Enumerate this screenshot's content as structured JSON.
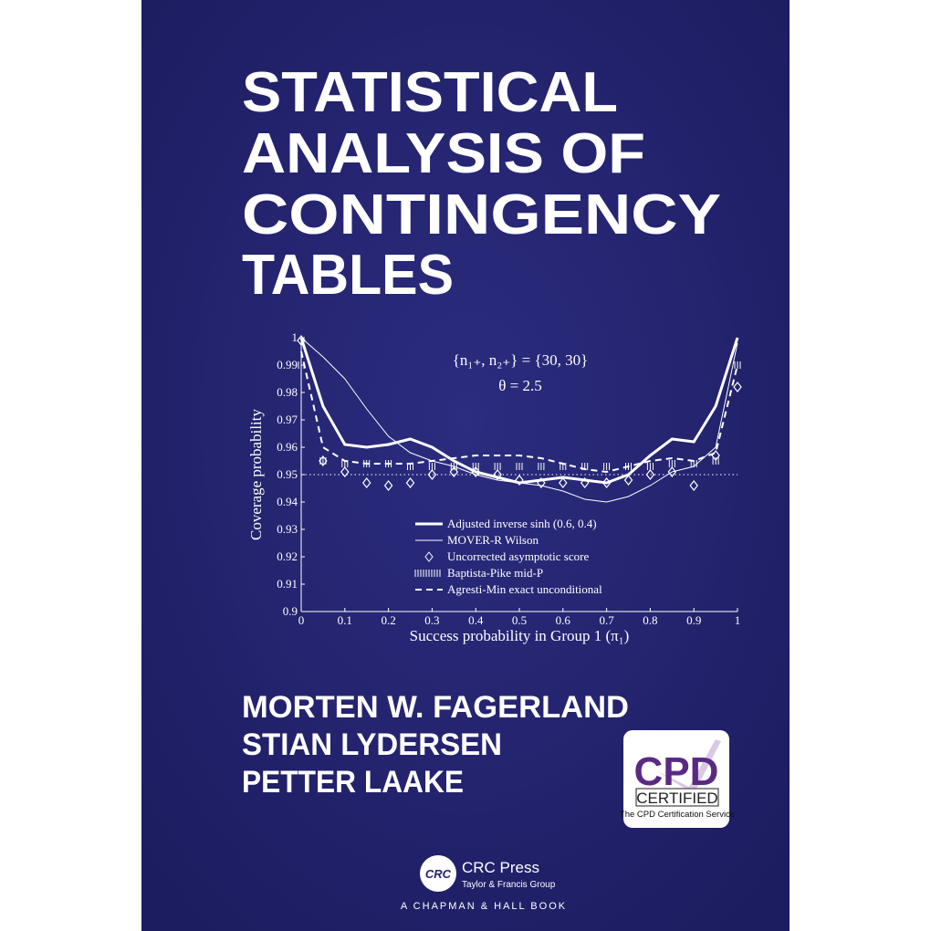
{
  "cover": {
    "title_lines": [
      "STATISTICAL",
      "ANALYSIS OF",
      "CONTINGENCY",
      "TABLES"
    ],
    "authors": [
      "MORTEN W. FAGERLAND",
      "STIAN LYDERSEN",
      "PETTER LAAKE"
    ],
    "badge": {
      "logo": "CPD",
      "status": "CERTIFIED",
      "service": "The CPD Certification Service"
    },
    "publisher": {
      "logo": "CRC",
      "name": "CRC Press",
      "group": "Taylor & Francis Group",
      "imprint": "A CHAPMAN & HALL BOOK"
    }
  },
  "chart_data": {
    "type": "line",
    "annotations": [
      "{n₁₊, n₂₊} = {30, 30}",
      "θ = 2.5"
    ],
    "x_label": "Success probability in Group 1 (π₁)",
    "y_label": "Coverage probability",
    "x": [
      0,
      0.05,
      0.1,
      0.15,
      0.2,
      0.25,
      0.3,
      0.35,
      0.4,
      0.45,
      0.5,
      0.55,
      0.6,
      0.65,
      0.7,
      0.75,
      0.8,
      0.85,
      0.9,
      0.95,
      1
    ],
    "xlim": [
      0,
      1
    ],
    "xticks": [
      0,
      0.1,
      0.2,
      0.3,
      0.4,
      0.5,
      0.6,
      0.7,
      0.8,
      0.9,
      1
    ],
    "ylim": [
      0.9,
      1
    ],
    "yticks": [
      0.9,
      0.91,
      0.92,
      0.93,
      0.94,
      0.95,
      0.96,
      0.97,
      0.98,
      0.99,
      1
    ],
    "reference_line": 0.95,
    "series": [
      {
        "name": "Adjusted inverse sinh (0.6, 0.4)",
        "style": "thick",
        "color": "#ffffff",
        "values": [
          1.0,
          0.975,
          0.961,
          0.96,
          0.961,
          0.963,
          0.96,
          0.955,
          0.951,
          0.949,
          0.947,
          0.948,
          0.949,
          0.948,
          0.947,
          0.95,
          0.957,
          0.963,
          0.962,
          0.975,
          1.0
        ]
      },
      {
        "name": "MOVER-R Wilson",
        "style": "thin",
        "color": "#ffffff",
        "values": [
          1.0,
          0.993,
          0.985,
          0.974,
          0.964,
          0.958,
          0.955,
          0.953,
          0.95,
          0.948,
          0.947,
          0.946,
          0.944,
          0.941,
          0.94,
          0.942,
          0.946,
          0.951,
          0.953,
          0.96,
          0.998
        ]
      },
      {
        "name": "Uncorrected asymptotic score",
        "style": "diamond",
        "color": "#ffffff",
        "values": [
          0.999,
          0.955,
          0.951,
          0.947,
          0.946,
          0.947,
          0.95,
          0.951,
          0.951,
          0.95,
          0.948,
          0.947,
          0.947,
          0.947,
          0.947,
          0.948,
          0.95,
          0.951,
          0.946,
          0.957,
          0.982
        ]
      },
      {
        "name": "Baptista-Pike mid-P",
        "style": "ticks",
        "color": "#ffffff",
        "values": [
          0.99,
          0.955,
          0.954,
          0.954,
          0.954,
          0.953,
          0.953,
          0.953,
          0.953,
          0.953,
          0.953,
          0.953,
          0.953,
          0.953,
          0.953,
          0.953,
          0.953,
          0.954,
          0.954,
          0.955,
          0.99
        ]
      },
      {
        "name": "Agresti-Min exact unconditional",
        "style": "dashed",
        "color": "#ffffff",
        "values": [
          0.995,
          0.96,
          0.955,
          0.954,
          0.954,
          0.954,
          0.955,
          0.956,
          0.957,
          0.957,
          0.957,
          0.956,
          0.954,
          0.952,
          0.951,
          0.953,
          0.955,
          0.956,
          0.955,
          0.958,
          0.99
        ]
      }
    ]
  }
}
